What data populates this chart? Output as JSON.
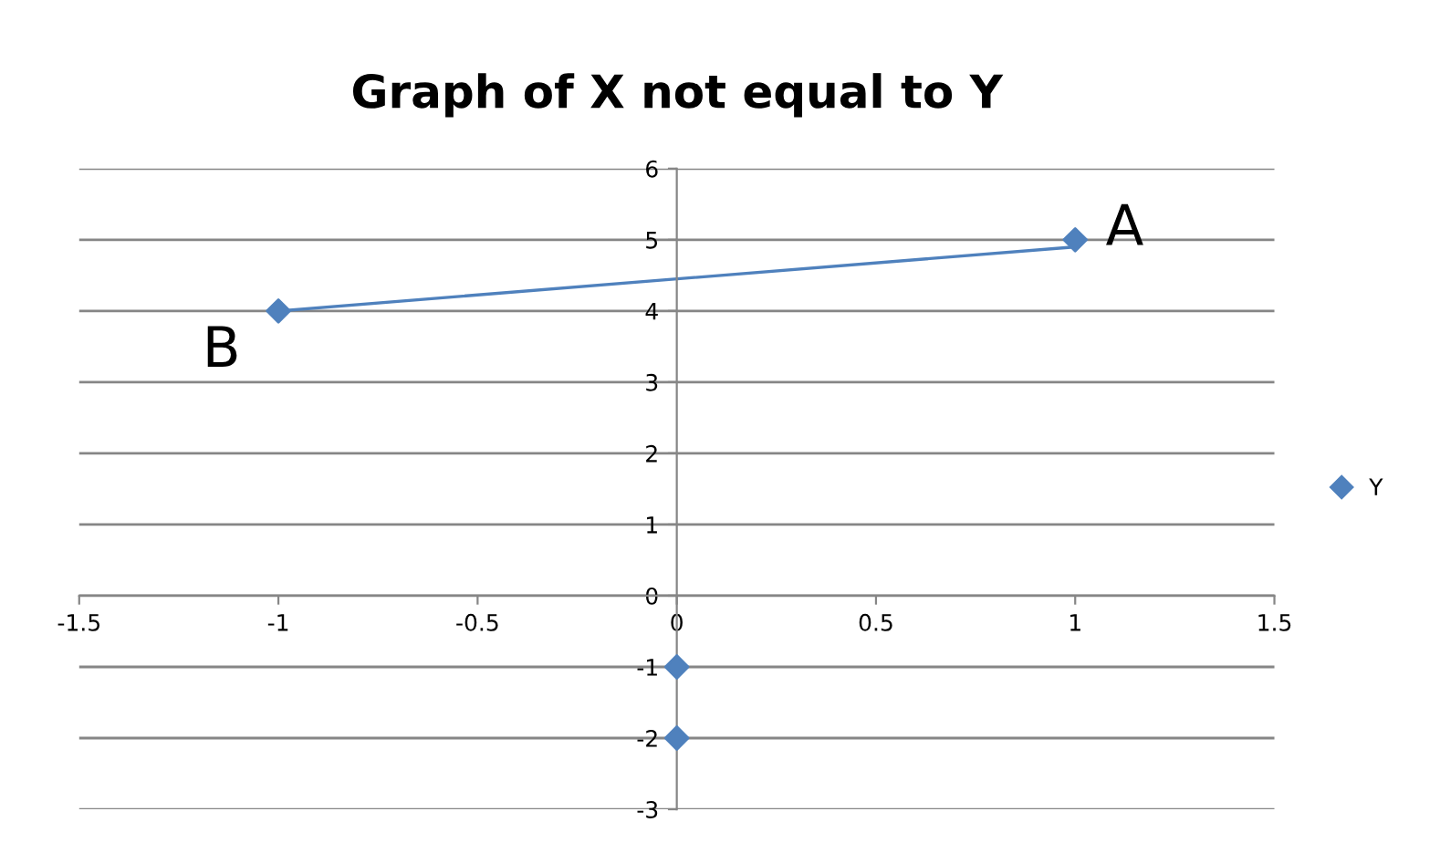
{
  "chart_data": {
    "type": "scatter",
    "title": "Graph of X not equal to Y",
    "series": [
      {
        "name": "Y",
        "color": "#4f81bd",
        "x": [
          1,
          -1,
          0,
          0
        ],
        "values": [
          5,
          4,
          -1,
          -2
        ],
        "marker": "diamond"
      },
      {
        "type": "line",
        "color": "#4f81bd",
        "x": [
          -1,
          1
        ],
        "values": [
          4,
          4.9
        ],
        "marker": "none"
      }
    ],
    "annotations": [
      {
        "text": "A",
        "x": 1,
        "y": 5
      },
      {
        "text": "B",
        "x": -1,
        "y": 4
      }
    ],
    "xlim": [
      -1.5,
      1.5
    ],
    "xticks": [
      -1.5,
      -1,
      -0.5,
      0,
      0.5,
      1,
      1.5
    ],
    "ylim": [
      -3,
      6
    ],
    "yticks": [
      -3,
      -2,
      -1,
      0,
      1,
      2,
      3,
      4,
      5,
      6
    ],
    "grid": "y",
    "legend": "right"
  }
}
